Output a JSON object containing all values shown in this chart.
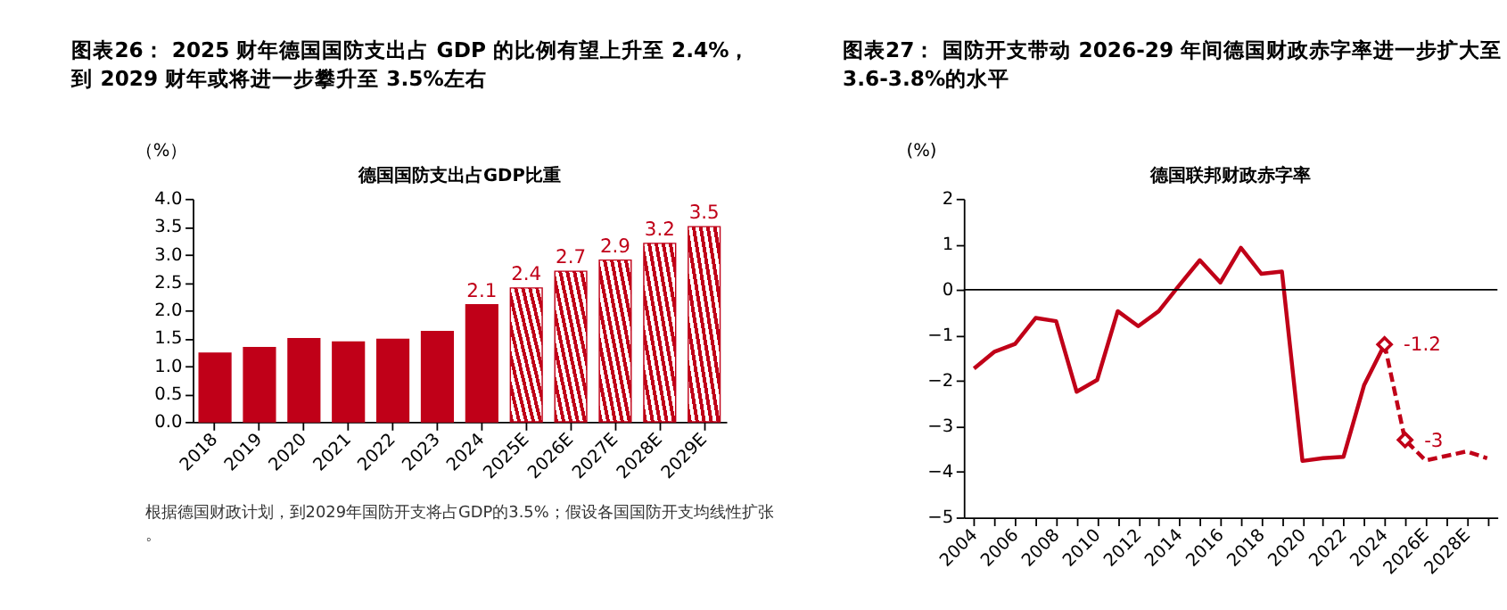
{
  "chart_data": [
    {
      "type": "bar",
      "title": "图表26：  2025 财年德国国防支出占 GDP 的比例有望上升至 2.4%，到 2029 财年或将进一步攀升至 3.5%左右",
      "subtitle": "德国国防支出占GDP比重",
      "ylabel": "（%）",
      "categories": [
        "2018",
        "2019",
        "2020",
        "2021",
        "2022",
        "2023",
        "2024",
        "2025E",
        "2026E",
        "2027E",
        "2028E",
        "2029E"
      ],
      "series": [
        {
          "color": "#c00018",
          "values": [
            1.23,
            1.33,
            1.49,
            1.43,
            1.48,
            1.62,
            2.1,
            null,
            null,
            null,
            null,
            null
          ],
          "value_labels": [
            null,
            null,
            null,
            null,
            null,
            null,
            "2.1",
            null,
            null,
            null,
            null,
            null
          ]
        },
        {
          "color": "#c00018",
          "values": [
            null,
            null,
            null,
            null,
            null,
            null,
            null,
            2.4,
            2.7,
            2.9,
            3.2,
            3.5
          ],
          "value_labels": [
            null,
            null,
            null,
            null,
            null,
            null,
            null,
            "2.4",
            "2.7",
            "2.9",
            "3.2",
            "3.5"
          ]
        }
      ],
      "ylim": [
        0,
        4
      ],
      "yticks": [
        {
          "value": 0,
          "label": "0.0"
        },
        0.5,
        {
          "value": 1,
          "label": "1.0"
        },
        1.5,
        {
          "value": 2,
          "label": "2.0"
        },
        2.5,
        {
          "value": 3,
          "label": "3.0"
        },
        3.5,
        {
          "value": 4,
          "label": "4.0"
        }
      ],
      "annotations": [
        "根据德国财政计划，到2029年国防开支将占GDP的3.5%；假设各国国防开支均线性扩张。"
      ]
    },
    {
      "type": "line",
      "title": "图表27：  国防开支带动 2026-29 年间德国财政赤字率进一步扩大至 3.6-3.8%的水平",
      "subtitle": "德国联邦财政赤字率",
      "ylabel": "(%)",
      "categories": [
        "2004",
        null,
        "2006",
        null,
        "2008",
        null,
        "2010",
        null,
        "2012",
        null,
        "2014",
        null,
        "2016",
        null,
        "2018",
        null,
        "2020",
        null,
        "2022",
        null,
        "2024",
        null,
        "2026E",
        null,
        "2028E",
        null
      ],
      "series": [
        {
          "color": "#c00018",
          "line_style": "solid",
          "values": [
            -1.73,
            -1.36,
            -1.19,
            -0.62,
            -0.69,
            -2.24,
            -1.98,
            -0.47,
            -0.8,
            -0.47,
            0.1,
            0.65,
            0.16,
            0.92,
            0.35,
            0.4,
            -3.76,
            -3.7,
            -3.67,
            -2.1,
            -1.2,
            null,
            null,
            null,
            null,
            null
          ]
        },
        {
          "color": "#c00018",
          "line_style": "dashed",
          "values": [
            null,
            null,
            null,
            null,
            null,
            null,
            null,
            null,
            null,
            null,
            null,
            null,
            null,
            null,
            null,
            null,
            null,
            null,
            null,
            null,
            -1.2,
            -3.3,
            -3.75,
            -3.65,
            -3.55,
            -3.7
          ]
        },
        {
          "type": "scatter",
          "color": "#c00018",
          "marker": "diamond",
          "values": [
            null,
            null,
            null,
            null,
            null,
            null,
            null,
            null,
            null,
            null,
            null,
            null,
            null,
            null,
            null,
            null,
            null,
            null,
            null,
            null,
            -1.2,
            -3.3,
            null,
            null,
            null,
            null
          ],
          "value_labels": [
            null,
            null,
            null,
            null,
            null,
            null,
            null,
            null,
            null,
            null,
            null,
            null,
            null,
            null,
            null,
            null,
            null,
            null,
            null,
            null,
            "-1.2",
            "-3",
            null,
            null,
            null,
            null
          ]
        }
      ],
      "ylim": [
        -5,
        2
      ],
      "yticks": [
        -5,
        -4,
        -3,
        -2,
        -1,
        0,
        1,
        2
      ],
      "ref_lines": [
        {
          "axis": "y",
          "value": 0,
          "color": "#000000"
        }
      ]
    }
  ]
}
